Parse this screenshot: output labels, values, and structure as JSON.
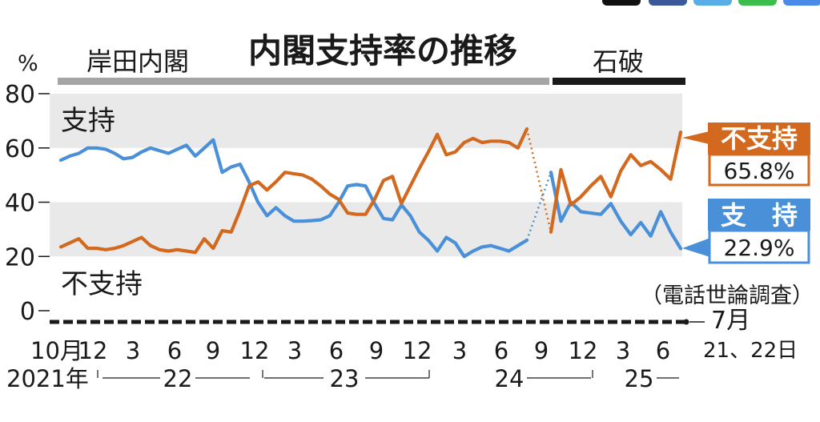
{
  "chart_data": {
    "type": "line",
    "title": "内閣支持率の推移",
    "ylabel": "%",
    "ylim": [
      0,
      80
    ],
    "yticks": [
      "80",
      "60",
      "40",
      "20",
      "0"
    ],
    "cabinets": [
      {
        "name": "岸田内閣",
        "color": "#a5a5a5"
      },
      {
        "name": "石破",
        "color": "#1a1a1a"
      }
    ],
    "bands": [
      [
        20,
        40
      ],
      [
        60,
        80
      ]
    ],
    "band_color": "#e9e9e9",
    "survey_note": "（電話世論調査）",
    "end_date": {
      "month": "7月",
      "days": "21、22日"
    },
    "x_month_labels": [
      "10月",
      "12",
      "3",
      "6",
      "9",
      "12",
      "3",
      "6",
      "9",
      "12",
      "3",
      "6",
      "9",
      "12",
      "3",
      "6"
    ],
    "x_year_labels": [
      "2021年",
      "22",
      "23",
      "24",
      "25"
    ],
    "series": [
      {
        "name": "支持",
        "inline_label": "支持",
        "end_label": "支　持",
        "end_value": "22.9%",
        "color": "#4a90d9",
        "values": [
          55.5,
          57,
          58,
          60,
          60,
          59.5,
          58,
          56,
          56.5,
          58.5,
          60,
          59,
          58,
          59.5,
          61,
          57,
          60,
          63,
          51,
          53,
          54,
          47.5,
          40,
          35,
          38,
          35,
          33,
          33,
          33.2,
          33.5,
          35,
          40,
          46,
          46.5,
          46,
          39.5,
          34,
          33.5,
          39,
          35,
          29,
          26,
          22,
          27,
          25,
          20,
          22,
          23.5,
          24,
          23,
          22,
          24,
          26
        ],
        "connector": [
          26,
          51
        ],
        "values2": [
          51,
          33,
          40,
          36.5,
          36,
          35.5,
          39.5,
          33,
          28,
          32.5,
          27.5,
          36.5,
          29,
          22.9
        ]
      },
      {
        "name": "不支持",
        "inline_label": "不支持",
        "end_label": "不支持",
        "end_value": "65.8%",
        "color": "#d2691e",
        "values": [
          23.5,
          25,
          26.5,
          23,
          23,
          22.5,
          23,
          24,
          25.5,
          27,
          24,
          22.5,
          22,
          22.5,
          22,
          21.5,
          26.5,
          23,
          29.5,
          29,
          37,
          46,
          47.5,
          44.5,
          47.5,
          51,
          50.5,
          50,
          48.5,
          46,
          43,
          41,
          36,
          35.5,
          35.5,
          41,
          48,
          49.5,
          39.5,
          46,
          52.5,
          58.5,
          65,
          57.5,
          58.5,
          62,
          63.5,
          62,
          62.5,
          62.5,
          62,
          60,
          67
        ],
        "connector": [
          67,
          29
        ],
        "values2": [
          29,
          52,
          39,
          42,
          46,
          49.5,
          42,
          51.5,
          57.5,
          53.5,
          55,
          52,
          48.5,
          65.8
        ]
      }
    ]
  }
}
